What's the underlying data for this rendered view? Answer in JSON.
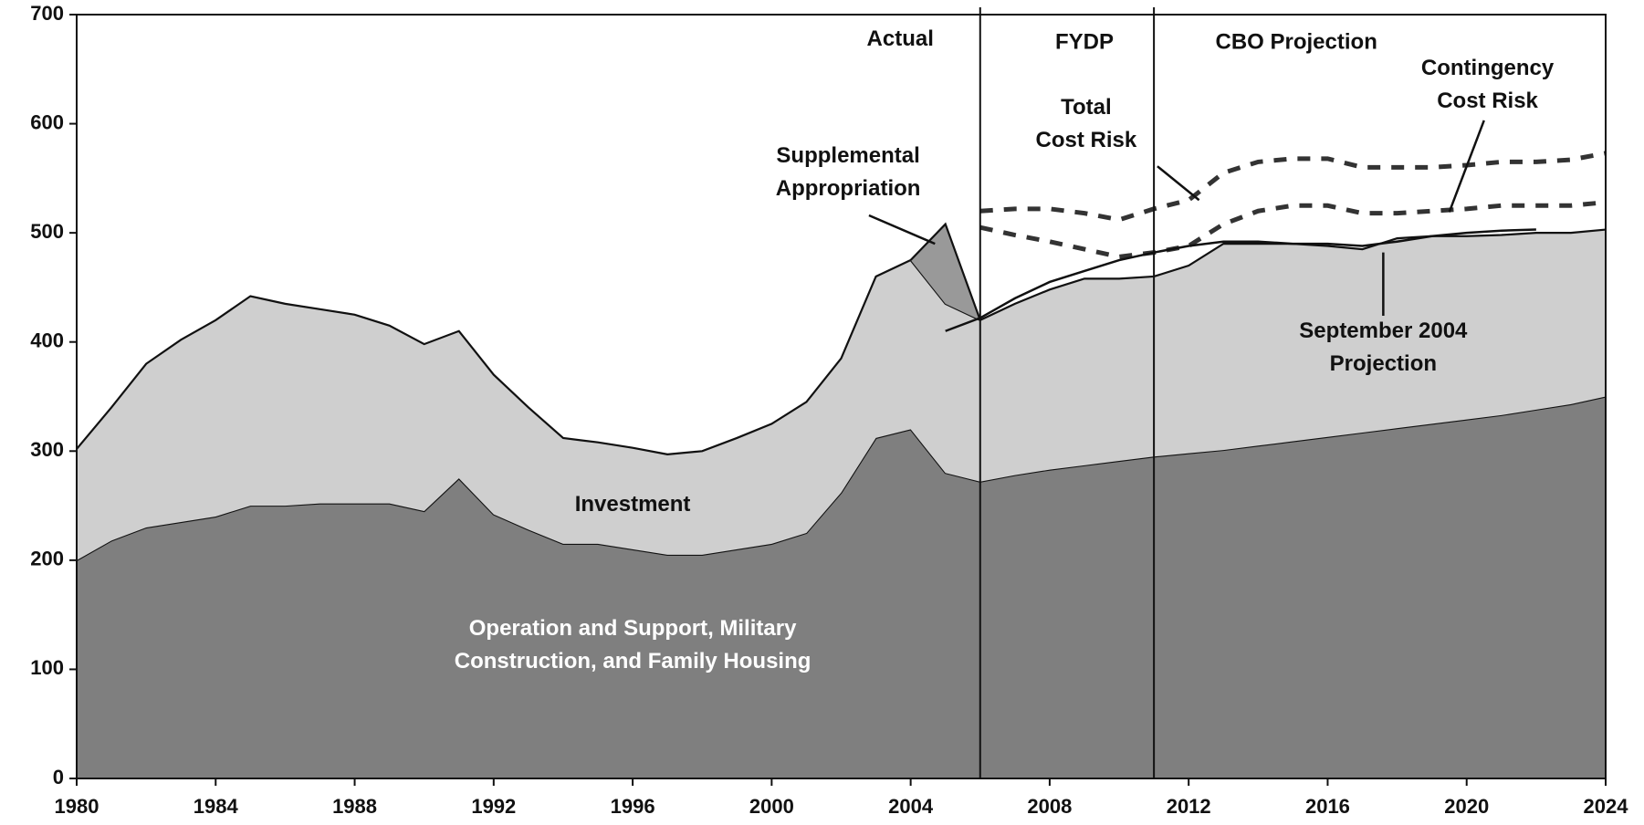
{
  "chart_data": {
    "type": "area",
    "stacked": true,
    "x": [
      1980,
      1981,
      1982,
      1983,
      1984,
      1985,
      1986,
      1987,
      1988,
      1989,
      1990,
      1991,
      1992,
      1993,
      1994,
      1995,
      1996,
      1997,
      1998,
      1999,
      2000,
      2001,
      2002,
      2003,
      2004,
      2005,
      2006,
      2007,
      2008,
      2009,
      2010,
      2011,
      2012,
      2013,
      2014,
      2015,
      2016,
      2017,
      2018,
      2019,
      2020,
      2021,
      2022,
      2023,
      2024
    ],
    "xlim": [
      1980,
      2024
    ],
    "xticks": [
      1980,
      1984,
      1988,
      1992,
      1996,
      2000,
      2004,
      2008,
      2012,
      2016,
      2020,
      2024
    ],
    "ylim": [
      0,
      700
    ],
    "yticks": [
      0,
      100,
      200,
      300,
      400,
      500,
      600,
      700
    ],
    "dividers": [
      2006,
      2011
    ],
    "annotations": [
      "Actual",
      "FYDP",
      "CBO Projection"
    ],
    "series": [
      {
        "name": "Operation and Support, Military\nConstruction, and Family Housing",
        "color": "#7f7f7f",
        "text_color": "#ffffff",
        "stack": true,
        "values": [
          200,
          218,
          230,
          235,
          240,
          250,
          250,
          252,
          252,
          252,
          245,
          275,
          242,
          228,
          215,
          215,
          210,
          205,
          205,
          210,
          215,
          225,
          262,
          312,
          320,
          280,
          272,
          278,
          283,
          287,
          291,
          295,
          298,
          301,
          305,
          309,
          313,
          317,
          321,
          325,
          329,
          333,
          338,
          343,
          350
        ]
      },
      {
        "name": "Investment",
        "color": "#cfcfcf",
        "stack": true,
        "values": [
          102,
          122,
          150,
          167,
          180,
          192,
          185,
          178,
          173,
          163,
          153,
          135,
          128,
          112,
          97,
          93,
          93,
          92,
          95,
          102,
          110,
          120,
          123,
          148,
          155,
          155,
          148,
          157,
          165,
          171,
          167,
          165,
          172,
          189,
          185,
          181,
          175,
          168,
          174,
          172,
          168,
          165,
          162,
          157,
          153
        ]
      },
      {
        "name": "Supplemental\nAppropriation",
        "color": "#999999",
        "stack": true,
        "values": [
          null,
          null,
          null,
          null,
          null,
          null,
          null,
          null,
          null,
          null,
          null,
          null,
          null,
          null,
          null,
          null,
          null,
          null,
          null,
          null,
          null,
          null,
          null,
          null,
          0,
          73,
          0,
          null,
          null,
          null,
          null,
          null,
          null,
          null,
          null,
          null,
          null,
          null,
          null,
          null,
          null,
          null,
          null,
          null,
          null
        ]
      },
      {
        "name": "Total\nCost Risk",
        "color": "#333333",
        "stack": false,
        "style": "dashed",
        "values": [
          null,
          null,
          null,
          null,
          null,
          null,
          null,
          null,
          null,
          null,
          null,
          null,
          null,
          null,
          null,
          null,
          null,
          null,
          null,
          null,
          null,
          null,
          null,
          null,
          null,
          null,
          520,
          522,
          522,
          518,
          512,
          522,
          530,
          555,
          565,
          568,
          568,
          560,
          560,
          560,
          562,
          565,
          565,
          567,
          573
        ]
      },
      {
        "name": "Contingency\nCost Risk",
        "color": "#333333",
        "stack": false,
        "style": "dashed",
        "values": [
          null,
          null,
          null,
          null,
          null,
          null,
          null,
          null,
          null,
          null,
          null,
          null,
          null,
          null,
          null,
          null,
          null,
          null,
          null,
          null,
          null,
          null,
          null,
          null,
          null,
          null,
          505,
          498,
          492,
          485,
          478,
          482,
          488,
          508,
          520,
          525,
          525,
          518,
          518,
          520,
          522,
          525,
          525,
          525,
          528
        ]
      },
      {
        "name": "September 2004\nProjection",
        "color": "#111111",
        "stack": false,
        "style": "solid",
        "values": [
          null,
          null,
          null,
          null,
          null,
          null,
          null,
          null,
          null,
          null,
          null,
          null,
          null,
          null,
          null,
          null,
          null,
          null,
          null,
          null,
          null,
          null,
          null,
          null,
          null,
          410,
          422,
          440,
          455,
          465,
          475,
          482,
          488,
          492,
          492,
          490,
          490,
          488,
          492,
          497,
          500,
          502,
          503,
          null,
          null
        ]
      }
    ]
  }
}
